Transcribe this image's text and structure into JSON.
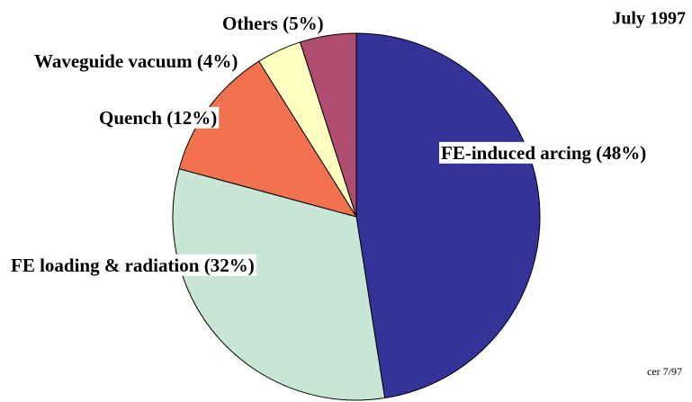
{
  "chart_data": {
    "type": "pie",
    "title": "July 1997",
    "note": "cer 7/97",
    "categories": [
      "FE-induced arcing (48%)",
      "FE loading & radiation (32%)",
      "Quench (12%)",
      "Waveguide vacuum (4%)",
      "Others (5%)"
    ],
    "values": [
      48,
      32,
      12,
      4,
      5
    ],
    "colors": [
      "#333399",
      "#c8e6d6",
      "#f27250",
      "#ffffc2",
      "#b04c70"
    ]
  }
}
